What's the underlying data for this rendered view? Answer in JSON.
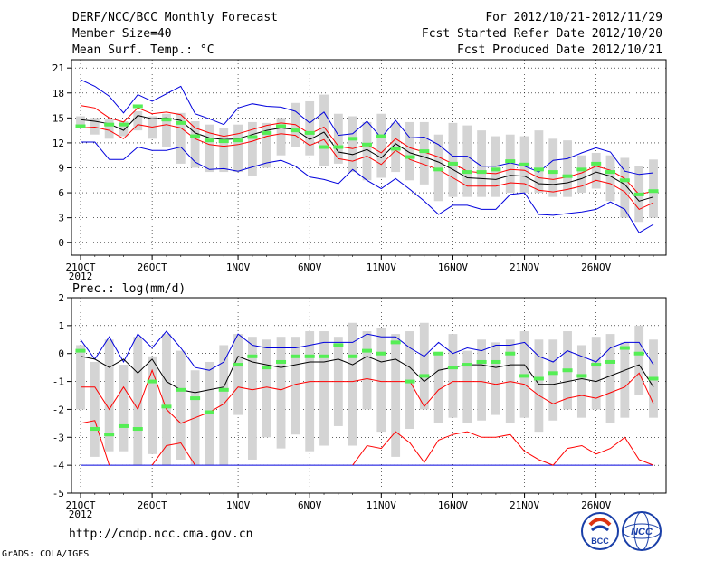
{
  "header": {
    "title": "DERF/NCC/BCC Monthly Forecast",
    "member_size": "Member Size=40",
    "variable": "Mean Surf. Temp.: °C",
    "period": "For 2012/10/21-2012/11/29",
    "start_date": "Fcst Started Refer Date 2012/10/20",
    "produced": "Fcst Produced Date 2012/10/21"
  },
  "footer": {
    "url": "http://cmdp.ncc.cma.gov.cn",
    "credit": "GrADS: COLA/IGES",
    "logo_bcc": "BCC",
    "logo_ncc": "NCC"
  },
  "colors": {
    "mean": "#000000",
    "spread": "#ff0000",
    "range": "#0000dd",
    "box": "#d4d4d4",
    "obs": "#55ee55"
  },
  "chart_data": [
    {
      "type": "line",
      "title": "Mean Surf. Temp.: °C",
      "xlabel": "",
      "ylabel": "°C",
      "ylim": [
        -1.5,
        22
      ],
      "yticks": [
        0,
        3,
        6,
        9,
        12,
        15,
        18,
        21
      ],
      "x_day_range": [
        0,
        40
      ],
      "xticks": [
        {
          "day": 0,
          "label": "21OCT",
          "sub": "2012"
        },
        {
          "day": 5,
          "label": "26OCT"
        },
        {
          "day": 11,
          "label": "1NOV"
        },
        {
          "day": 16,
          "label": "6NOV"
        },
        {
          "day": 21,
          "label": "11NOV"
        },
        {
          "day": 26,
          "label": "16NOV"
        },
        {
          "day": 31,
          "label": "21NOV"
        },
        {
          "day": 36,
          "label": "26NOV"
        }
      ],
      "mean": [
        14.8,
        14.6,
        14.3,
        13.5,
        15.3,
        14.9,
        15.0,
        14.7,
        13.2,
        12.6,
        12.4,
        12.5,
        13.0,
        13.5,
        13.8,
        13.6,
        12.4,
        13.3,
        10.9,
        10.6,
        11.2,
        10.2,
        11.9,
        10.8,
        10.3,
        9.7,
        8.8,
        7.8,
        7.7,
        7.6,
        8.1,
        8.0,
        7.1,
        7.0,
        7.2,
        7.7,
        8.5,
        8.0,
        7.0,
        5.0,
        5.5
      ],
      "spread_hi": [
        16.5,
        16.2,
        15.0,
        14.5,
        16.2,
        15.5,
        15.7,
        15.4,
        13.8,
        13.2,
        12.8,
        13.1,
        13.6,
        14.1,
        14.4,
        14.2,
        13.1,
        13.9,
        11.6,
        11.3,
        11.8,
        10.8,
        12.5,
        11.4,
        10.9,
        10.3,
        9.5,
        8.6,
        8.4,
        8.3,
        8.8,
        8.7,
        7.8,
        7.6,
        7.9,
        8.4,
        9.2,
        8.7,
        7.7,
        5.8,
        6.2
      ],
      "spread_lo": [
        13.8,
        13.9,
        13.5,
        12.5,
        14.2,
        13.9,
        14.2,
        13.8,
        12.5,
        11.8,
        11.6,
        11.8,
        12.2,
        12.8,
        13.1,
        12.9,
        11.7,
        12.4,
        10.1,
        9.8,
        10.4,
        9.4,
        11.1,
        10.0,
        9.4,
        8.8,
        7.8,
        6.8,
        6.8,
        6.8,
        7.2,
        7.1,
        6.3,
        6.1,
        6.4,
        6.8,
        7.5,
        7.1,
        6.1,
        4.0,
        4.8
      ],
      "max": [
        19.6,
        18.8,
        17.6,
        15.6,
        17.8,
        17.0,
        17.9,
        18.8,
        15.5,
        14.9,
        14.2,
        16.2,
        16.7,
        16.4,
        16.3,
        15.8,
        14.4,
        15.7,
        12.9,
        13.1,
        14.6,
        12.6,
        14.7,
        12.6,
        12.7,
        11.8,
        10.4,
        10.4,
        9.2,
        9.2,
        9.6,
        9.2,
        8.5,
        9.9,
        10.1,
        10.8,
        11.4,
        10.9,
        8.6,
        8.2,
        8.4
      ],
      "min": [
        12.1,
        12.1,
        10.0,
        10.0,
        11.5,
        11.1,
        11.1,
        11.5,
        9.7,
        8.8,
        8.9,
        8.6,
        9.1,
        9.6,
        9.9,
        9.2,
        7.9,
        7.6,
        7.1,
        8.8,
        7.5,
        6.5,
        7.7,
        6.4,
        5.0,
        3.4,
        4.5,
        4.5,
        4.0,
        4.0,
        5.8,
        6.0,
        3.4,
        3.3,
        3.5,
        3.7,
        4.0,
        4.9,
        4.0,
        1.2,
        2.2
      ],
      "box_hi": [
        15.2,
        15.0,
        14.8,
        14.6,
        15.8,
        15.2,
        15.5,
        15.6,
        14.6,
        14.2,
        13.8,
        14.2,
        14.5,
        14.4,
        15.0,
        16.8,
        17.0,
        17.8,
        15.5,
        15.2,
        14.5,
        15.5,
        14.4,
        14.5,
        14.5,
        13.0,
        14.4,
        14.1,
        13.5,
        12.8,
        13.0,
        12.8,
        13.5,
        12.5,
        12.3,
        10.5,
        10.8,
        10.5,
        10.2,
        9.2,
        10.0
      ],
      "box_lo": [
        13.8,
        13.0,
        12.5,
        12.8,
        13.5,
        12.5,
        11.5,
        9.5,
        9.0,
        8.5,
        8.5,
        8.5,
        8.0,
        9.0,
        10.5,
        11.5,
        10.5,
        9.2,
        9.5,
        8.5,
        7.5,
        7.8,
        8.5,
        7.5,
        7.0,
        5.0,
        5.5,
        5.5,
        5.5,
        5.5,
        6.0,
        6.0,
        6.0,
        5.5,
        5.5,
        6.0,
        6.5,
        5.0,
        3.0,
        2.5,
        3.0
      ],
      "obs": [
        14.0,
        null,
        14.2,
        14.2,
        16.4,
        null,
        14.8,
        14.4,
        12.8,
        12.3,
        12.2,
        12.3,
        12.7,
        13.2,
        14.0,
        13.5,
        13.2,
        11.5,
        11.5,
        12.5,
        11.8,
        12.8,
        11.3,
        10.3,
        11.0,
        8.8,
        9.5,
        8.5,
        8.5,
        8.8,
        9.8,
        9.4,
        8.8,
        8.5,
        8.0,
        8.8,
        9.5,
        8.5,
        7.5,
        5.8,
        6.2
      ]
    },
    {
      "type": "line",
      "title": "Prec.: log(mm/d)",
      "xlabel": "",
      "ylabel": "log(mm/d)",
      "ylim": [
        -5,
        2
      ],
      "yticks": [
        -5,
        -4,
        -3,
        -2,
        -1,
        0,
        1,
        2
      ],
      "x_day_range": [
        0,
        40
      ],
      "xticks": [
        {
          "day": 0,
          "label": "21OCT",
          "sub": "2012"
        },
        {
          "day": 5,
          "label": "26OCT"
        },
        {
          "day": 11,
          "label": "1NOV"
        },
        {
          "day": 16,
          "label": "6NOV"
        },
        {
          "day": 21,
          "label": "11NOV"
        },
        {
          "day": 26,
          "label": "16NOV"
        },
        {
          "day": 31,
          "label": "21NOV"
        },
        {
          "day": 36,
          "label": "26NOV"
        }
      ],
      "mean": [
        -0.1,
        -0.2,
        -0.5,
        -0.2,
        -0.7,
        -0.2,
        -1.0,
        -1.3,
        -1.4,
        -1.3,
        -1.2,
        -0.1,
        -0.3,
        -0.4,
        -0.5,
        -0.4,
        -0.3,
        -0.3,
        -0.2,
        -0.4,
        -0.1,
        -0.3,
        -0.2,
        -0.5,
        -1.0,
        -0.6,
        -0.5,
        -0.4,
        -0.4,
        -0.5,
        -0.4,
        -0.4,
        -1.1,
        -1.1,
        -1.0,
        -0.9,
        -1.0,
        -0.8,
        -0.6,
        -0.4,
        -1.2
      ],
      "spread_hi": [
        -1.2,
        -1.2,
        -2.0,
        -1.2,
        -2.0,
        -0.6,
        -2.0,
        -2.5,
        -2.3,
        -2.1,
        -1.8,
        -1.2,
        -1.3,
        -1.2,
        -1.3,
        -1.1,
        -1.0,
        -1.0,
        -1.0,
        -1.0,
        -0.9,
        -1.0,
        -1.0,
        -1.0,
        -1.9,
        -1.3,
        -1.0,
        -1.0,
        -1.0,
        -1.1,
        -1.0,
        -1.1,
        -1.5,
        -1.8,
        -1.6,
        -1.5,
        -1.6,
        -1.4,
        -1.2,
        -0.7,
        -1.8
      ],
      "spread_lo": [
        -2.5,
        -2.4,
        -4.0,
        null,
        null,
        -4.0,
        -3.3,
        -3.2,
        -4.0,
        null,
        null,
        null,
        null,
        null,
        null,
        null,
        null,
        null,
        null,
        -4.0,
        -3.3,
        -3.4,
        -2.8,
        -3.2,
        -3.9,
        -3.1,
        -2.9,
        -2.8,
        -3.0,
        -3.0,
        -2.9,
        -3.5,
        -3.8,
        -4.0,
        -3.4,
        -3.3,
        -3.6,
        -3.4,
        -3.0,
        -3.8,
        -4.0
      ],
      "max": [
        0.5,
        -0.2,
        0.6,
        -0.3,
        0.7,
        0.2,
        0.8,
        0.2,
        -0.5,
        -0.6,
        -0.3,
        0.7,
        0.3,
        0.2,
        0.2,
        0.2,
        0.3,
        0.4,
        0.4,
        0.4,
        0.7,
        0.6,
        0.6,
        0.2,
        -0.1,
        0.4,
        0.0,
        0.2,
        0.1,
        0.3,
        0.3,
        0.4,
        -0.1,
        -0.3,
        0.1,
        -0.1,
        -0.3,
        0.2,
        0.4,
        0.4,
        -0.4
      ],
      "min": [
        -4.0,
        -4.0,
        -4.0,
        -4.0,
        -4.0,
        -4.0,
        -4.0,
        -4.0,
        -4.0,
        -4.0,
        -4.0,
        -4.0,
        -4.0,
        -4.0,
        -4.0,
        -4.0,
        -4.0,
        -4.0,
        -4.0,
        -4.0,
        -4.0,
        -4.0,
        -4.0,
        -4.0,
        -4.0,
        -4.0,
        -4.0,
        -4.0,
        -4.0,
        -4.0,
        -4.0,
        -4.0,
        -4.0,
        -4.0,
        -4.0,
        -4.0,
        -4.0,
        -4.0,
        -4.0,
        -4.0,
        -4.0
      ],
      "box_hi": [
        0.3,
        -0.3,
        0.5,
        -0.4,
        0.6,
        -0.1,
        0.7,
        0.1,
        -0.6,
        -0.3,
        0.3,
        0.7,
        0.6,
        0.5,
        0.6,
        0.6,
        0.8,
        0.8,
        0.6,
        1.1,
        0.8,
        0.9,
        0.7,
        0.8,
        1.1,
        0.0,
        0.7,
        0.1,
        0.5,
        0.4,
        0.5,
        0.8,
        0.5,
        0.5,
        0.8,
        0.3,
        0.6,
        0.7,
        0.4,
        1.0,
        0.5
      ],
      "box_lo": [
        -2.0,
        -3.7,
        -3.5,
        -3.5,
        -4.0,
        -3.6,
        -4.0,
        -3.8,
        -4.0,
        -4.0,
        -4.0,
        -2.2,
        -3.8,
        -3.0,
        -3.4,
        -2.9,
        -3.5,
        -3.3,
        -2.6,
        -3.3,
        -2.0,
        -2.8,
        -3.7,
        -2.7,
        -2.0,
        -2.5,
        -2.3,
        -2.5,
        -2.4,
        -2.2,
        -2.5,
        -2.3,
        -2.8,
        -2.4,
        -2.0,
        -2.3,
        -2.0,
        -2.5,
        -2.3,
        -1.5,
        -2.3
      ],
      "obs": [
        0.1,
        -2.7,
        -2.9,
        -2.6,
        -2.7,
        -1.0,
        -1.9,
        -1.3,
        -1.6,
        -2.1,
        -1.3,
        -0.4,
        -0.1,
        -0.5,
        -0.3,
        -0.1,
        -0.1,
        -0.1,
        0.3,
        -0.1,
        0.1,
        0.0,
        0.4,
        -1.0,
        -0.8,
        0.0,
        -0.5,
        -0.4,
        -0.3,
        -0.3,
        0.0,
        -0.8,
        -0.9,
        -0.7,
        -0.6,
        -0.8,
        -0.4,
        -0.3,
        0.2,
        0.0,
        -0.9
      ]
    }
  ]
}
